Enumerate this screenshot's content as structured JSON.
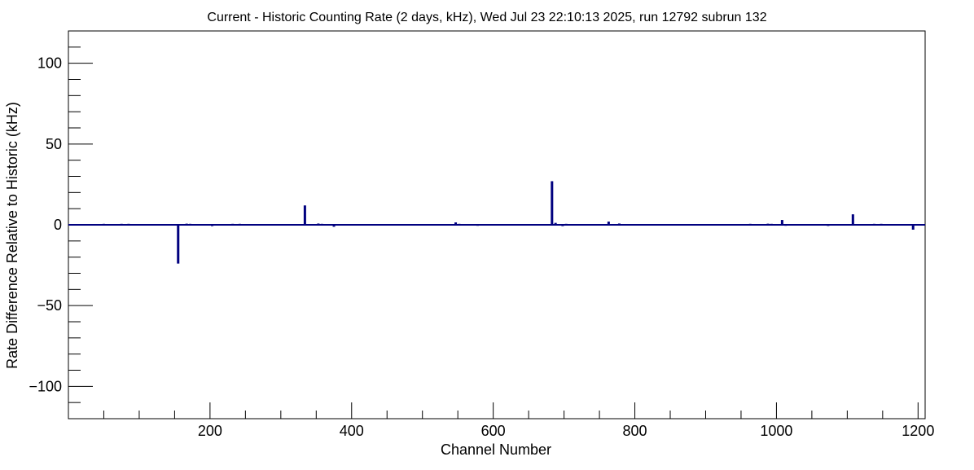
{
  "chart_data": {
    "type": "bar",
    "title": "Current - Historic Counting Rate (2 days, kHz), Wed Jul 23 22:10:13 2025, run 12792 subrun 132",
    "xlabel": "Channel Number",
    "ylabel": "Rate Difference Relative to Historic (kHz)",
    "xlim": [
      0,
      1210
    ],
    "ylim": [
      -120,
      120
    ],
    "x_ticks": [
      200,
      400,
      600,
      800,
      1000,
      1200
    ],
    "x_tick_labels": [
      "200",
      "400",
      "600",
      "800",
      "1000",
      "1200"
    ],
    "y_ticks": [
      -100,
      -50,
      0,
      50,
      100
    ],
    "y_tick_labels": [
      "−100",
      "−50",
      "0",
      "50",
      "100"
    ],
    "grid": false,
    "bar_color": "#00007f",
    "x": [
      50,
      75,
      85,
      125,
      140,
      155,
      167,
      172,
      182,
      198,
      203,
      232,
      242,
      305,
      315,
      334,
      353,
      358,
      375,
      397,
      547,
      552,
      578,
      635,
      660,
      683,
      688,
      698,
      703,
      763,
      778,
      813,
      843,
      898,
      963,
      988,
      993,
      1008,
      1013,
      1073,
      1108,
      1138,
      1148,
      1163,
      1193
    ],
    "values": [
      0.6,
      0.6,
      0.6,
      0.5,
      0.5,
      -24,
      0.7,
      0.6,
      0.5,
      0.5,
      -0.8,
      0.6,
      0.6,
      0.5,
      0.5,
      12,
      0.8,
      0.6,
      -1.2,
      0.5,
      1.5,
      0.6,
      -0.6,
      0.5,
      0.5,
      27,
      1.2,
      -0.8,
      0.6,
      2.0,
      0.8,
      -0.5,
      0.5,
      -0.5,
      0.6,
      0.7,
      0.6,
      3.0,
      -0.6,
      -0.7,
      6.5,
      0.6,
      0.6,
      -0.5,
      -3.0
    ]
  }
}
